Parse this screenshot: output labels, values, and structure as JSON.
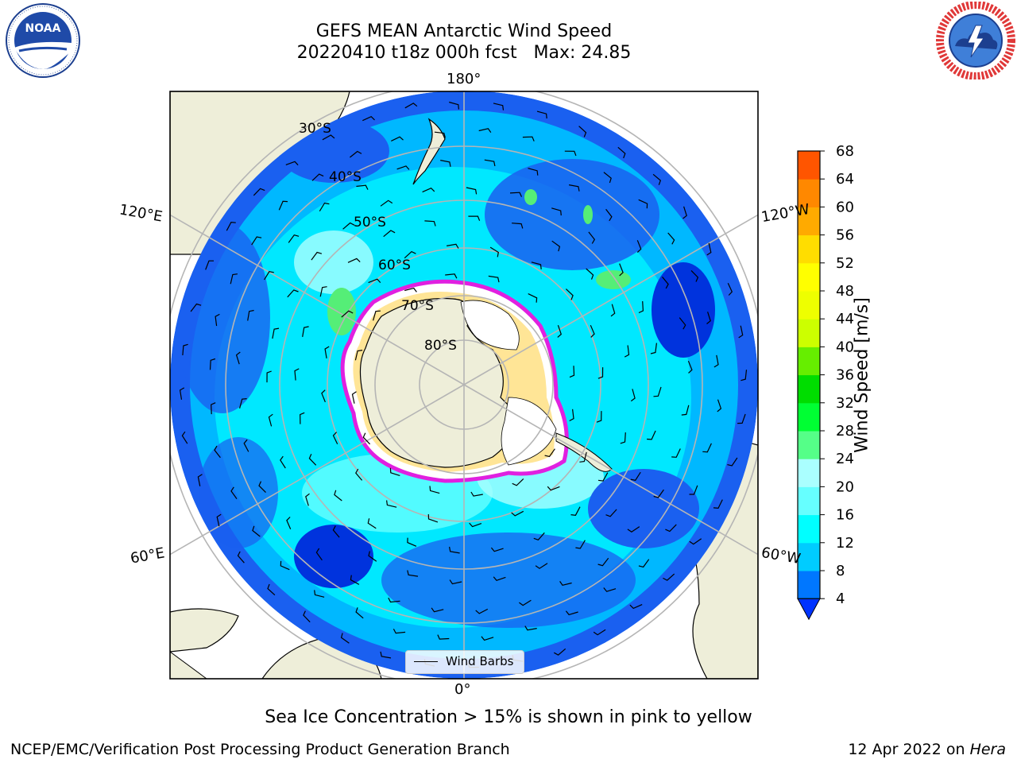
{
  "header": {
    "title_line1": "GEFS MEAN Antarctic Wind Speed",
    "title_line2": "20220410 t18z 000h fcst   Max: 24.85"
  },
  "logos": {
    "left": {
      "name": "NOAA",
      "ring_text": "NATIONAL OCEANIC AND ATMOSPHERIC ADMINISTRATION · U.S. DEPARTMENT OF COMMERCE"
    },
    "right": {
      "name": "NATIONAL WEATHER SERVICE"
    }
  },
  "map": {
    "longitude_labels": {
      "top": "180°",
      "bottom": "0°",
      "upper_left": "120°E",
      "upper_right": "120°W",
      "lower_left": "60°E",
      "lower_right": "60°W"
    },
    "latitude_labels": [
      "30°S",
      "40°S",
      "50°S",
      "60°S",
      "70°S",
      "80°S"
    ],
    "legend_label": "Wind Barbs",
    "colors": {
      "land": "#eeeed9",
      "ocean_ring_outer": "#1a60f0",
      "ocean_mid": "#00e8ff",
      "ice": "#ffffff",
      "ice_edge": "#e020e0"
    }
  },
  "colorbar": {
    "label": "Wind Speed [m/s]",
    "ticks": [
      "4",
      "8",
      "12",
      "16",
      "20",
      "24",
      "28",
      "32",
      "36",
      "40",
      "44",
      "48",
      "52",
      "56",
      "60",
      "64",
      "68"
    ],
    "colors": [
      "#0033ff",
      "#0077ff",
      "#00ccff",
      "#00ffff",
      "#66ffff",
      "#aaffff",
      "#55ff88",
      "#00ff33",
      "#00dd00",
      "#66ee00",
      "#ccff00",
      "#eeff00",
      "#ffff00",
      "#ffdd00",
      "#ffaa00",
      "#ff8800",
      "#ff5500",
      "#ff2200",
      "#ff0000"
    ]
  },
  "footer": {
    "note": "Sea Ice Concentration > 15% is shown in pink to yellow",
    "left": "NCEP/EMC/Verification Post Processing Product Generation Branch",
    "date": "12 Apr 2022 on ",
    "machine": "Hera"
  }
}
